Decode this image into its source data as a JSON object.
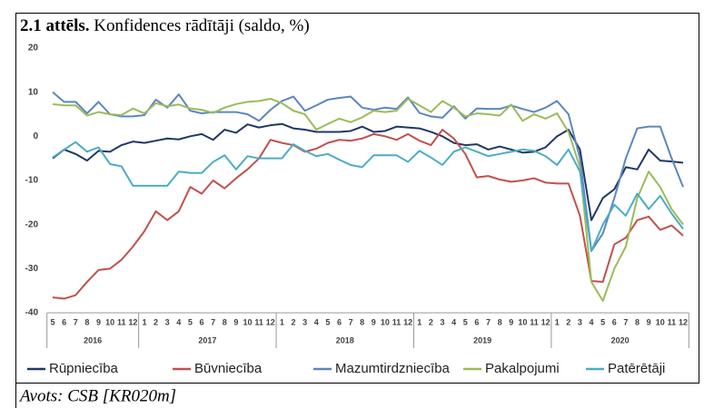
{
  "chart_data": {
    "type": "line",
    "title_label": "2.1 attēls.",
    "title": "Konfidences rādītāji (saldo, %)",
    "source": "Avots: CSB [KR020m]",
    "categories": [
      "5",
      "6",
      "7",
      "8",
      "9",
      "10",
      "11",
      "12",
      "1",
      "2",
      "3",
      "4",
      "5",
      "6",
      "7",
      "8",
      "9",
      "10",
      "11",
      "12",
      "1",
      "2",
      "3",
      "4",
      "5",
      "6",
      "7",
      "8",
      "9",
      "10",
      "11",
      "12",
      "1",
      "2",
      "3",
      "4",
      "5",
      "6",
      "7",
      "8",
      "9",
      "10",
      "11",
      "12",
      "1",
      "2",
      "3",
      "4",
      "5",
      "6",
      "7",
      "8",
      "9",
      "10",
      "11",
      "12"
    ],
    "year_groups": [
      {
        "label": "2016",
        "months": 8
      },
      {
        "label": "2017",
        "months": 12
      },
      {
        "label": "2018",
        "months": 12
      },
      {
        "label": "2019",
        "months": 12
      },
      {
        "label": "2020",
        "months": 12
      }
    ],
    "ylim": [
      -40,
      20
    ],
    "yticks": [
      20,
      10,
      0,
      -10,
      -20,
      -30,
      -40
    ],
    "grid": false,
    "legend": "bottom",
    "series": [
      {
        "name": "Rūpniecība",
        "color": "#1f3864",
        "values": [
          -5,
          -3,
          -4,
          -5.5,
          -3.3,
          -3.5,
          -2,
          -1.2,
          -1.5,
          -1,
          -0.5,
          -0.7,
          0,
          0.5,
          -0.8,
          1.5,
          0.8,
          2.7,
          2,
          2.5,
          2.8,
          1.8,
          1.5,
          1,
          1,
          1,
          1.2,
          2.2,
          1,
          1.2,
          2.2,
          2,
          1.8,
          1,
          0,
          -1.5,
          -2,
          -1.8,
          -3,
          -2.3,
          -3,
          -3.7,
          -3.5,
          -2.5,
          0,
          1.5,
          -3,
          -19,
          -14,
          -12,
          -7,
          -7.5,
          -3,
          -5.5,
          -5.7,
          -6
        ]
      },
      {
        "name": "Būvniecība",
        "color": "#c0504d",
        "values": [
          -36.5,
          -36.8,
          -36,
          -33,
          -30.3,
          -30,
          -28,
          -25,
          -21.5,
          -17,
          -19,
          -17,
          -11.5,
          -13,
          -10,
          -11.8,
          -9.5,
          -7.5,
          -5,
          -0.8,
          -1.5,
          -2,
          -3.5,
          -2.8,
          -1.5,
          -0.8,
          -1,
          -0.5,
          0.5,
          0,
          -0.8,
          0.5,
          -1,
          -2,
          1.5,
          -0.5,
          -4,
          -9.3,
          -9,
          -9.8,
          -10.3,
          -10,
          -9.5,
          -10.5,
          -10.7,
          -10.7,
          -18,
          -32.8,
          -33,
          -24.5,
          -23,
          -19,
          -18.2,
          -21.2,
          -20.2,
          -22.5
        ]
      },
      {
        "name": "Mazumtirdzniecība",
        "color": "#5b86c0",
        "values": [
          10,
          7.8,
          7.8,
          5.2,
          7.8,
          5,
          4.5,
          4.5,
          4.8,
          8.3,
          6.5,
          9.5,
          5.8,
          5.2,
          5.5,
          5.5,
          5.5,
          5,
          3.5,
          6,
          8,
          9,
          5.8,
          7,
          8.3,
          8.7,
          9,
          6.5,
          6,
          6.5,
          6.2,
          8.8,
          5.3,
          4.5,
          4.2,
          6.8,
          4,
          6.3,
          6.2,
          6.2,
          7,
          6.2,
          5.5,
          6.5,
          8,
          5,
          -5,
          -26,
          -22,
          -14,
          -5,
          1.8,
          2.2,
          2.2,
          -5,
          -11.5
        ]
      },
      {
        "name": "Pakalpojumi",
        "color": "#9bbb59",
        "values": [
          7.3,
          7,
          7,
          4.7,
          5.5,
          5,
          4.8,
          6.3,
          5.2,
          7.5,
          6.8,
          7.2,
          6.3,
          6,
          5.3,
          6.5,
          7.3,
          7.8,
          8,
          8.5,
          7.5,
          5.8,
          5,
          1.5,
          2.8,
          4,
          3.2,
          4.3,
          5.8,
          5.5,
          5.8,
          8.5,
          7,
          5.5,
          8,
          6.5,
          4.5,
          5.2,
          5,
          4.7,
          7.2,
          3.5,
          5,
          4,
          5.2,
          1,
          -7,
          -33,
          -37.3,
          -30,
          -25,
          -14,
          -8,
          -11.5,
          -16.5,
          -20
        ]
      },
      {
        "name": "Patērētāji",
        "color": "#4bacc6",
        "values": [
          -4.8,
          -3,
          -1.3,
          -3.5,
          -2.5,
          -6.3,
          -6.8,
          -11.2,
          -11.2,
          -11.2,
          -11.2,
          -8,
          -8.3,
          -8.3,
          -5.8,
          -4.3,
          -7.5,
          -4.5,
          -5,
          -5,
          -5,
          -1.8,
          -3.3,
          -4.5,
          -4,
          -5.3,
          -6.5,
          -7,
          -4.3,
          -4.3,
          -4.3,
          -5.8,
          -3.3,
          -4.8,
          -6.5,
          -3.5,
          -2.5,
          -3.5,
          -4.5,
          -4,
          -3.5,
          -3,
          -3.3,
          -4.5,
          -6.5,
          -3,
          -8,
          -26,
          -20,
          -15.5,
          -18,
          -13,
          -16.5,
          -13.5,
          -17.5,
          -21
        ]
      }
    ]
  }
}
